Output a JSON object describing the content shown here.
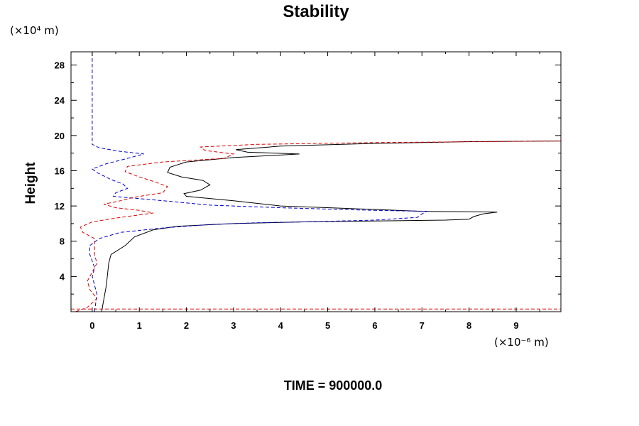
{
  "chart_data": {
    "type": "line",
    "title": "Stability",
    "ylabel": "Height",
    "xlabel": "",
    "y_scale_label": "(×10⁴ m)",
    "x_scale_label": "(×10⁻⁶ m)",
    "footer": "TIME = 900000.0",
    "xlim": [
      -0.45,
      9.95
    ],
    "ylim": [
      0,
      29.5
    ],
    "x_ticks": [
      0,
      1,
      2,
      3,
      4,
      5,
      6,
      7,
      8,
      9
    ],
    "y_ticks": [
      4,
      8,
      12,
      16,
      20,
      24,
      28
    ],
    "x_tick_labels": [
      "0",
      "1",
      "2",
      "3",
      "4",
      "5",
      "6",
      "7",
      "8",
      "9"
    ],
    "y_tick_labels": [
      "4",
      "8",
      "12",
      "16",
      "20",
      "24",
      "28"
    ],
    "grid": false,
    "series": [
      {
        "color": "#000000",
        "dash": "solid",
        "points": [
          [
            0.2,
            0
          ],
          [
            0.3,
            3
          ],
          [
            0.35,
            5.5
          ],
          [
            0.4,
            6.5
          ],
          [
            0.7,
            7.5
          ],
          [
            0.9,
            8.5
          ],
          [
            1.3,
            9.3
          ],
          [
            1.8,
            9.7
          ],
          [
            3.0,
            10.0
          ],
          [
            4.5,
            10.2
          ],
          [
            6.0,
            10.3
          ],
          [
            7.5,
            10.4
          ],
          [
            8.0,
            10.5
          ],
          [
            8.1,
            10.8
          ],
          [
            8.3,
            11.1
          ],
          [
            8.6,
            11.3
          ],
          [
            7.0,
            11.4
          ],
          [
            5.5,
            11.7
          ],
          [
            4.0,
            12.0
          ],
          [
            3.0,
            12.6
          ],
          [
            2.0,
            13.1
          ],
          [
            1.95,
            13.4
          ],
          [
            2.3,
            13.8
          ],
          [
            2.5,
            14.4
          ],
          [
            2.35,
            14.9
          ],
          [
            1.9,
            15.3
          ],
          [
            1.6,
            15.8
          ],
          [
            1.65,
            16.4
          ],
          [
            2.0,
            17.0
          ],
          [
            3.0,
            17.5
          ],
          [
            4.4,
            17.9
          ],
          [
            3.3,
            18.1
          ],
          [
            3.05,
            18.4
          ],
          [
            4.0,
            18.8
          ],
          [
            6.0,
            19.1
          ],
          [
            8.0,
            19.3
          ],
          [
            10.5,
            19.4
          ]
        ]
      },
      {
        "color": "#0000cc",
        "dash": "dashed",
        "points": [
          [
            0.05,
            0
          ],
          [
            0.1,
            2
          ],
          [
            0.0,
            4
          ],
          [
            0.05,
            5
          ],
          [
            -0.05,
            6.5
          ],
          [
            -0.05,
            7.5
          ],
          [
            0.15,
            8.3
          ],
          [
            0.6,
            9.0
          ],
          [
            1.5,
            9.5
          ],
          [
            2.5,
            9.9
          ],
          [
            3.5,
            10.1
          ],
          [
            4.5,
            10.2
          ],
          [
            6.0,
            10.4
          ],
          [
            6.9,
            10.7
          ],
          [
            7.0,
            11.1
          ],
          [
            7.1,
            11.4
          ],
          [
            6.0,
            11.5
          ],
          [
            4.0,
            11.8
          ],
          [
            2.5,
            12.1
          ],
          [
            1.5,
            12.6
          ],
          [
            0.45,
            13.1
          ],
          [
            0.5,
            13.5
          ],
          [
            0.75,
            14.0
          ],
          [
            0.65,
            14.5
          ],
          [
            0.4,
            15.0
          ],
          [
            0.1,
            15.8
          ],
          [
            0.0,
            16.2
          ],
          [
            0.3,
            16.8
          ],
          [
            0.6,
            17.2
          ],
          [
            1.1,
            17.9
          ],
          [
            0.6,
            18.2
          ],
          [
            0.15,
            18.6
          ],
          [
            0.0,
            19.0
          ],
          [
            0.0,
            22
          ],
          [
            0.0,
            26
          ],
          [
            0.0,
            29.5
          ]
        ]
      },
      {
        "color": "#dd0000",
        "dash": "dashed",
        "points": [
          [
            -0.35,
            0
          ],
          [
            -0.1,
            0.5
          ],
          [
            0.1,
            1.5
          ],
          [
            -0.05,
            2.5
          ],
          [
            -0.1,
            3.5
          ],
          [
            0.0,
            4.5
          ],
          [
            0.1,
            5.5
          ],
          [
            0.05,
            6.5
          ],
          [
            0.05,
            7.5
          ],
          [
            0.05,
            8.3
          ],
          [
            -0.2,
            9.0
          ],
          [
            -0.25,
            9.6
          ],
          [
            0.0,
            10.2
          ],
          [
            0.6,
            10.7
          ],
          [
            1.3,
            11.2
          ],
          [
            1.0,
            11.5
          ],
          [
            0.5,
            11.8
          ],
          [
            0.25,
            12.2
          ],
          [
            0.6,
            12.6
          ],
          [
            0.9,
            13.0
          ],
          [
            1.5,
            13.5
          ],
          [
            1.6,
            14.2
          ],
          [
            1.3,
            14.8
          ],
          [
            1.0,
            15.3
          ],
          [
            0.7,
            15.9
          ],
          [
            0.75,
            16.5
          ],
          [
            1.5,
            17.0
          ],
          [
            2.8,
            17.4
          ],
          [
            3.0,
            17.9
          ],
          [
            2.4,
            18.3
          ],
          [
            2.3,
            18.7
          ],
          [
            3.5,
            19.0
          ],
          [
            6.0,
            19.2
          ],
          [
            10.5,
            19.4
          ]
        ]
      },
      {
        "color": "#dd0000",
        "dash": "dashed",
        "points": [
          [
            -0.45,
            0.3
          ],
          [
            9.95,
            0.3
          ]
        ]
      }
    ]
  }
}
